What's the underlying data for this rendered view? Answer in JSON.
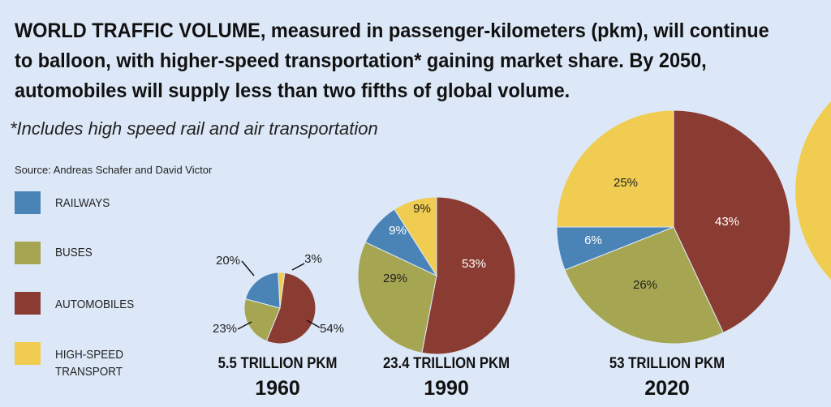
{
  "header": {
    "title": "WORLD TRAFFIC VOLUME, measured in passenger-kilometers (pkm), will continue to balloon, with higher-speed transportation* gaining market share. By 2050, automobiles will supply less than two fifths of global volume.",
    "footnote": "*Includes high speed rail and air transportation",
    "source": "Source: Andreas Schafer and David Victor"
  },
  "legend": [
    {
      "label": "RAILWAYS",
      "color": "#4a84b6"
    },
    {
      "label": "BUSES",
      "color": "#a6a652"
    },
    {
      "label": "AUTOMOBILES",
      "color": "#8b3c32"
    },
    {
      "label": "HIGH-SPEED TRANSPORT",
      "color": "#f0cd50"
    }
  ],
  "chart_data": {
    "type": "pie",
    "categories": [
      "RAILWAYS",
      "BUSES",
      "AUTOMOBILES",
      "HIGH-SPEED TRANSPORT"
    ],
    "colors": {
      "RAILWAYS": "#4a84b6",
      "BUSES": "#a6a652",
      "AUTOMOBILES": "#8b3c32",
      "HIGH-SPEED TRANSPORT": "#f0cd50"
    },
    "pies": [
      {
        "year": "1960",
        "total_label": "5.5 TRILLION PKM",
        "total": 5.5,
        "slices": [
          {
            "category": "HIGH-SPEED TRANSPORT",
            "value": 3,
            "label": "3%"
          },
          {
            "category": "AUTOMOBILES",
            "value": 54,
            "label": "54%"
          },
          {
            "category": "BUSES",
            "value": 23,
            "label": "23%"
          },
          {
            "category": "RAILWAYS",
            "value": 20,
            "label": "20%"
          }
        ]
      },
      {
        "year": "1990",
        "total_label": "23.4 TRILLION PKM",
        "total": 23.4,
        "slices": [
          {
            "category": "AUTOMOBILES",
            "value": 53,
            "label": "53%"
          },
          {
            "category": "BUSES",
            "value": 29,
            "label": "29%"
          },
          {
            "category": "RAILWAYS",
            "value": 9,
            "label": "9%"
          },
          {
            "category": "HIGH-SPEED TRANSPORT",
            "value": 9,
            "label": "9%"
          }
        ]
      },
      {
        "year": "2020",
        "total_label": "53 TRILLION PKM",
        "total": 53,
        "slices": [
          {
            "category": "AUTOMOBILES",
            "value": 43,
            "label": "43%"
          },
          {
            "category": "BUSES",
            "value": 26,
            "label": "26%"
          },
          {
            "category": "RAILWAYS",
            "value": 6,
            "label": "6%"
          },
          {
            "category": "HIGH-SPEED TRANSPORT",
            "value": 25,
            "label": "25%"
          }
        ]
      }
    ]
  }
}
